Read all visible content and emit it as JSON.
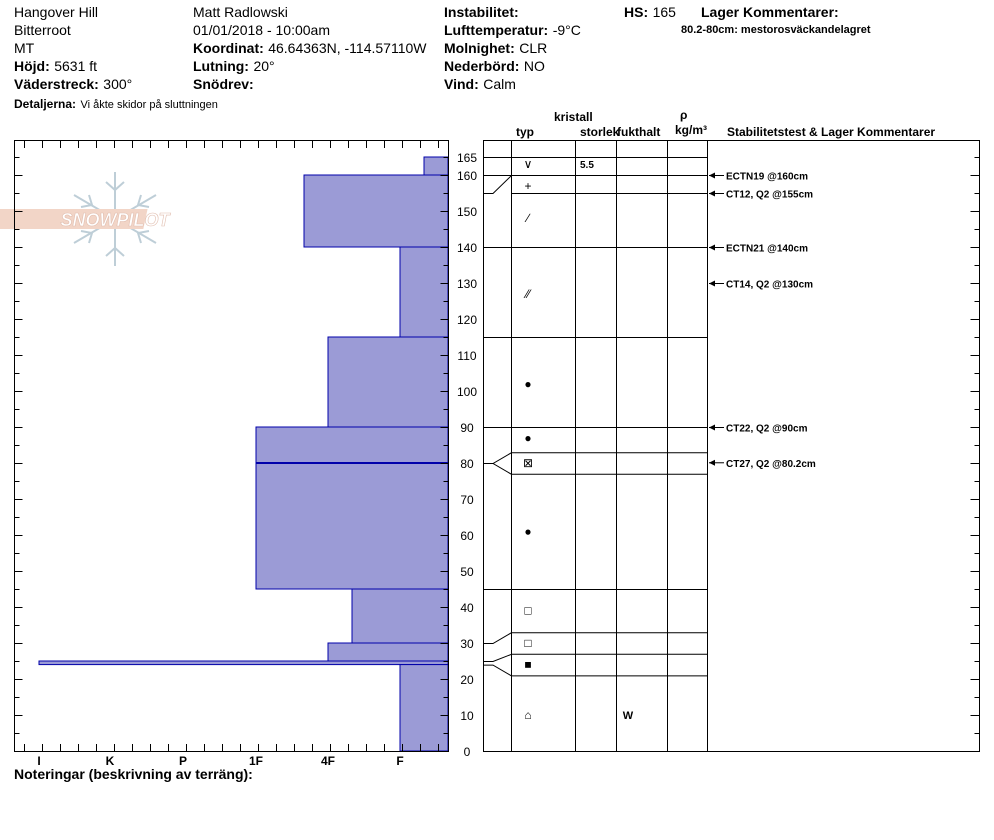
{
  "header": {
    "location": "Hangover Hill",
    "range": "Bitterroot",
    "state": "MT",
    "elevation_label": "Höjd:",
    "elevation": "5631 ft",
    "aspect_label": "Väderstreck:",
    "aspect": "300°",
    "details_label": "Detaljerna:",
    "details": "Vi åkte skidor på sluttningen",
    "observer": "Matt Radlowski",
    "datetime": "01/01/2018 - 10:00am",
    "coord_label": "Koordinat:",
    "coord": "46.64363N, -114.57110W",
    "slope_label": "Lutning:",
    "slope": "20°",
    "drift_label": "Snödrev:",
    "drift": "",
    "instability_label": "Instabilitet:",
    "instability": "",
    "airtemp_label": "Lufttemperatur:",
    "airtemp": "-9°C",
    "sky_label": "Molnighet:",
    "sky": "CLR",
    "precip_label": "Nederbörd:",
    "precip": "NO",
    "wind_label": "Vind:",
    "wind": "Calm",
    "hs_label": "HS:",
    "hs": "165",
    "layer_comments_label": "Lager Kommentarer:",
    "layer_comment": "80.2-80cm: mestorosväckandelagret"
  },
  "columns": {
    "crystal_top": "kristall",
    "type": "typ",
    "size": "storlek",
    "moisture": "fukthalt",
    "rho": "ρ",
    "density": "kg/m³",
    "tests": "Stabilitetstest & Lager Kommentarer"
  },
  "logo_text": "SNOWPILOT",
  "footer_label": "Noteringar (beskrivning av terräng):",
  "colors": {
    "hardness_fill": "#9b9bd6",
    "hardness_edge": "#0000aa"
  },
  "chart_data": {
    "type": "bar",
    "title": "",
    "ylabel": "",
    "ylim": [
      0,
      165
    ],
    "y_ticks": [
      0,
      10,
      20,
      30,
      40,
      50,
      60,
      70,
      80,
      90,
      100,
      110,
      120,
      130,
      140,
      150,
      160,
      165
    ],
    "hardness_scale": [
      "I",
      "K",
      "P",
      "1F",
      "4F",
      "F"
    ],
    "hardness_layers": [
      {
        "bottom": 160,
        "top": 165,
        "hardness": "F-"
      },
      {
        "bottom": 140,
        "top": 160,
        "hardness": "4F+"
      },
      {
        "bottom": 115,
        "top": 140,
        "hardness": "F"
      },
      {
        "bottom": 90,
        "top": 115,
        "hardness": "4F"
      },
      {
        "bottom": 80,
        "top": 90,
        "hardness": "1F"
      },
      {
        "bottom": 45,
        "top": 80,
        "hardness": "1F"
      },
      {
        "bottom": 30,
        "top": 45,
        "hardness": "4F-"
      },
      {
        "bottom": 25,
        "top": 30,
        "hardness": "4F"
      },
      {
        "bottom": 24,
        "top": 25,
        "hardness": "I"
      },
      {
        "bottom": 0,
        "top": 24,
        "hardness": "F"
      }
    ],
    "layer_boundaries": [
      165,
      160,
      155,
      140,
      115,
      90,
      83,
      77,
      45,
      33,
      27,
      21
    ],
    "crystals": [
      {
        "height": 163,
        "symbol": "∨",
        "size": "5.5"
      },
      {
        "height": 157,
        "symbol": "+"
      },
      {
        "height": 148,
        "symbol": "∕"
      },
      {
        "height": 127,
        "symbol": "⁄⁄"
      },
      {
        "height": 102,
        "symbol": "●"
      },
      {
        "height": 87,
        "symbol": "●"
      },
      {
        "height": 80,
        "symbol": "⊠"
      },
      {
        "height": 61,
        "symbol": "●"
      },
      {
        "height": 39,
        "symbol": "□"
      },
      {
        "height": 30,
        "symbol": "□"
      },
      {
        "height": 24,
        "symbol": "■"
      },
      {
        "height": 10,
        "symbol": "⌂",
        "moisture": "W"
      }
    ],
    "tests": [
      {
        "height": 160,
        "label": "ECTN19 @160cm"
      },
      {
        "height": 155,
        "label": "CT12, Q2 @155cm"
      },
      {
        "height": 140,
        "label": "ECTN21 @140cm"
      },
      {
        "height": 130,
        "label": "CT14, Q2 @130cm"
      },
      {
        "height": 90,
        "label": "CT22, Q2 @90cm"
      },
      {
        "height": 80.2,
        "label": "CT27, Q2 @80.2cm"
      }
    ]
  }
}
